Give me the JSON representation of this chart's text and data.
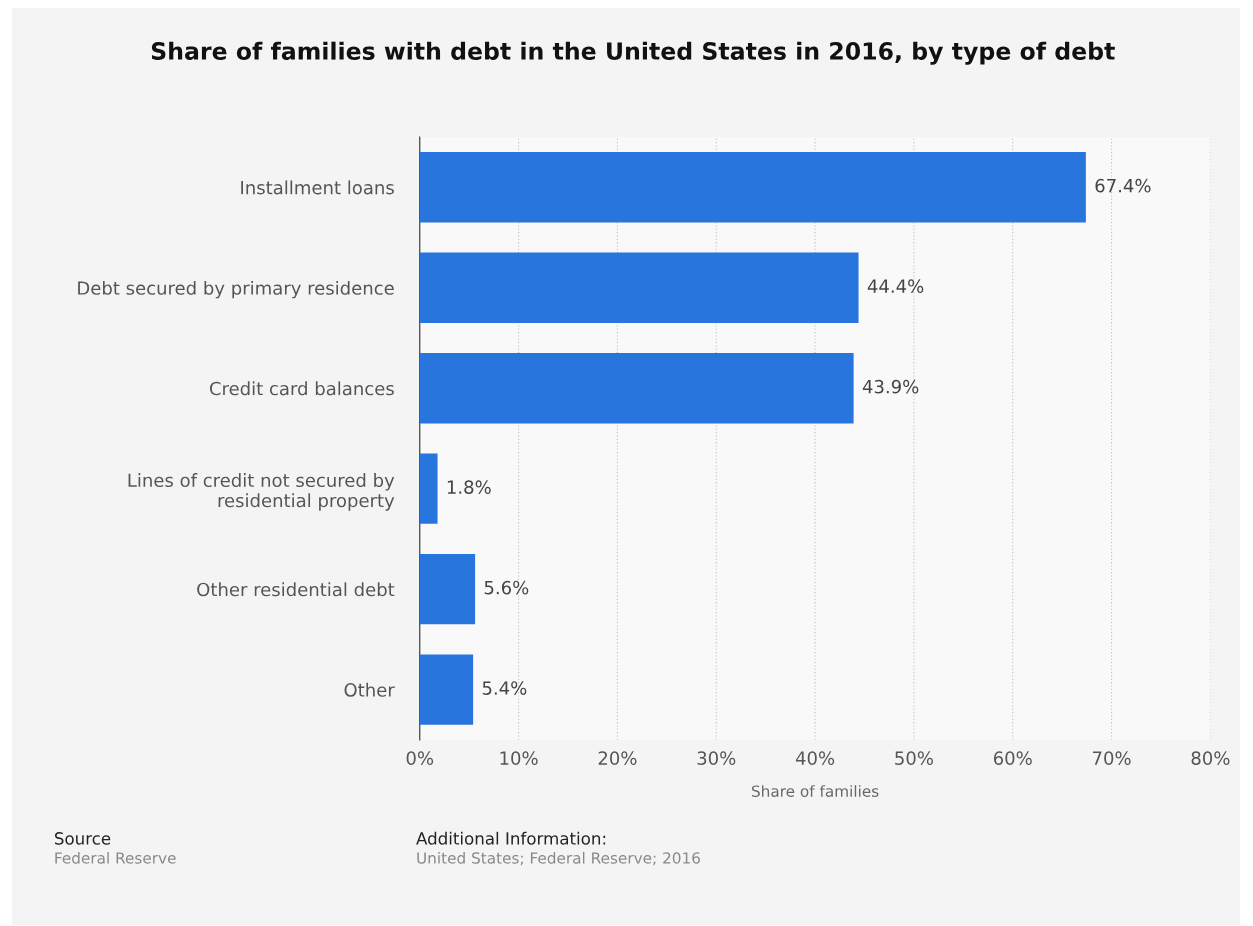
{
  "chart_data": {
    "type": "bar",
    "orientation": "horizontal",
    "title": "Share of families with debt in the United States in 2016, by type of debt",
    "xlabel": "Share of families",
    "categories": [
      "Installment loans",
      "Debt secured by primary residence",
      "Credit card balances",
      "Lines of credit not secured by\nresidential property",
      "Other residential debt",
      "Other"
    ],
    "values": [
      67.4,
      44.4,
      43.9,
      1.8,
      5.6,
      5.4
    ],
    "value_labels": [
      "67.4%",
      "44.4%",
      "43.9%",
      "1.8%",
      "5.6%",
      "5.4%"
    ],
    "color": "#2876dd",
    "xlim": [
      0,
      80
    ],
    "xticks": [
      {
        "value": 0,
        "label": "0%"
      },
      {
        "value": 10,
        "label": "10%"
      },
      {
        "value": 20,
        "label": "20%"
      },
      {
        "value": 30,
        "label": "30%"
      },
      {
        "value": 40,
        "label": "40%"
      },
      {
        "value": 50,
        "label": "50%"
      },
      {
        "value": 60,
        "label": "60%"
      },
      {
        "value": 70,
        "label": "70%"
      },
      {
        "value": 80,
        "label": "80%"
      }
    ],
    "grid": "x",
    "annotations": [
      "Source",
      "Federal Reserve",
      "Additional Information:",
      "United States; Federal Reserve; 2016"
    ]
  }
}
